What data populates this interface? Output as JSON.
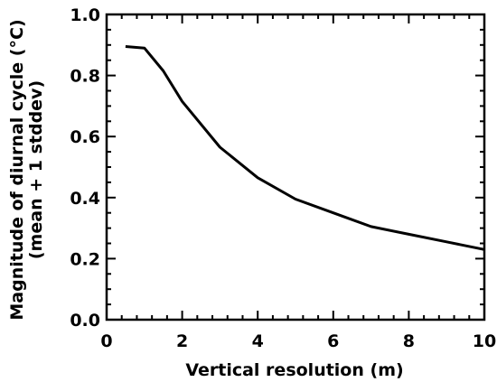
{
  "chart_data": {
    "type": "line",
    "title": "",
    "xlabel": "Vertical resolution (m)",
    "ylabel_line1": "Magnitude of diurnal cycle (°C)",
    "ylabel_line2": "(mean + 1 stddev)",
    "xlim": [
      0,
      10
    ],
    "ylim": [
      0.0,
      1.0
    ],
    "x_ticks": [
      "0",
      "2",
      "4",
      "6",
      "8",
      "10"
    ],
    "y_ticks": [
      "0.0",
      "0.2",
      "0.4",
      "0.6",
      "0.8",
      "1.0"
    ],
    "grid": false,
    "line_color": "#000000",
    "series": [
      {
        "x": [
          0.5,
          1.0,
          1.5,
          2.0,
          3.0,
          4.0,
          5.0,
          6.0,
          7.0,
          8.0,
          9.0,
          10.0
        ],
        "y": [
          0.895,
          0.89,
          0.815,
          0.715,
          0.565,
          0.465,
          0.395,
          0.35,
          0.305,
          0.28,
          0.255,
          0.23
        ]
      }
    ]
  }
}
